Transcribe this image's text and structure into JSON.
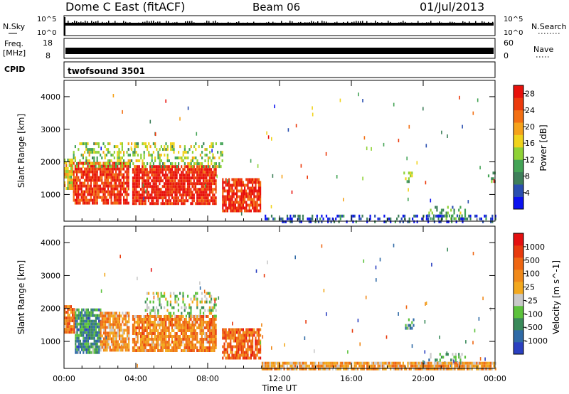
{
  "header": {
    "station": "Dome C East (fitACF)",
    "beam": "Beam 06",
    "date": "01/Jul/2013"
  },
  "top_panels": {
    "nsky_label": "N.Sky",
    "nsky_ticks": [
      "10^5",
      "10^0"
    ],
    "nsearch_label": "N.Search",
    "nsearch_ticks": [
      "10^5",
      "10^0"
    ],
    "freq_label_line1": "Freq.",
    "freq_label_line2": "[MHz]",
    "freq_ticks": [
      "18",
      "8"
    ],
    "nave_label": "Nave",
    "nave_ticks": [
      "60",
      "0"
    ],
    "cpid_label": "CPID",
    "cpid_value": "twofsound 3501"
  },
  "colors": {
    "power_scale": [
      "#0b12f0",
      "#2a4fb0",
      "#3e7f5a",
      "#44a456",
      "#8fd236",
      "#f0d31c",
      "#f5a21a",
      "#f36f12",
      "#ec3a0c",
      "#e8110b"
    ],
    "velocity_scale": [
      "#2a3fc0",
      "#2f6aa6",
      "#3a8a5a",
      "#5cc23c",
      "#c9c9c9",
      "#f2a81e",
      "#f0891a",
      "#ef6612",
      "#e83a0d",
      "#e41010"
    ]
  },
  "chart_data": [
    {
      "type": "heatmap",
      "title": "Power",
      "xlabel": "Time UT",
      "ylabel": "Slant Range [km]",
      "x_ticks": [
        "00:00",
        "04:00",
        "08:00",
        "12:00",
        "16:00",
        "20:00",
        "00:00"
      ],
      "xlim_hours": [
        0,
        24
      ],
      "y_ticks": [
        1000,
        2000,
        3000,
        4000
      ],
      "ylim": [
        180,
        4500
      ],
      "colorbar": {
        "label": "Power [dB]",
        "ticks": [
          4,
          8,
          12,
          16,
          20,
          24,
          28
        ],
        "range": [
          0,
          30
        ]
      },
      "regions": [
        {
          "t": [
            0.0,
            0.5
          ],
          "r": [
            1200,
            2100
          ],
          "level": 0.55
        },
        {
          "t": [
            0.5,
            3.6
          ],
          "r": [
            700,
            2000
          ],
          "level": 0.88
        },
        {
          "t": [
            3.8,
            8.5
          ],
          "r": [
            700,
            1900
          ],
          "level": 0.92
        },
        {
          "t": [
            8.8,
            10.9
          ],
          "r": [
            500,
            1500
          ],
          "level": 0.9
        },
        {
          "t": [
            0.5,
            8.8
          ],
          "r": [
            1900,
            2600
          ],
          "level": 0.45
        },
        {
          "t": [
            18.9,
            19.5
          ],
          "r": [
            1400,
            1700
          ],
          "level": 0.4
        },
        {
          "t": [
            20.2,
            22.3
          ],
          "r": [
            250,
            650
          ],
          "level": 0.35
        },
        {
          "t": [
            11.0,
            24.0
          ],
          "r": [
            180,
            380
          ],
          "level": 0.15
        },
        {
          "t": [
            23.6,
            24.0
          ],
          "r": [
            1400,
            1700
          ],
          "level": 0.3
        }
      ]
    },
    {
      "type": "heatmap",
      "title": "Velocity",
      "xlabel": "Time UT",
      "ylabel": "Slant Range [km]",
      "x_ticks": [
        "00:00",
        "04:00",
        "08:00",
        "12:00",
        "16:00",
        "20:00",
        "00:00"
      ],
      "xlim_hours": [
        0,
        24
      ],
      "y_ticks": [
        1000,
        2000,
        3000,
        4000
      ],
      "ylim": [
        180,
        4500
      ],
      "colorbar": {
        "label": "Velocity [m s^-1]",
        "ticks": [
          -1000,
          -500,
          -100,
          -25,
          25,
          100,
          500,
          1000
        ]
      },
      "regions": [
        {
          "t": [
            0.0,
            0.6
          ],
          "r": [
            1300,
            2100
          ],
          "level": 0.72
        },
        {
          "t": [
            0.6,
            2.0
          ],
          "r": [
            700,
            2000
          ],
          "level": 0.25
        },
        {
          "t": [
            2.0,
            3.6
          ],
          "r": [
            700,
            1900
          ],
          "level": 0.62
        },
        {
          "t": [
            3.8,
            8.5
          ],
          "r": [
            700,
            1800
          ],
          "level": 0.66
        },
        {
          "t": [
            4.5,
            8.5
          ],
          "r": [
            1800,
            2500
          ],
          "level": 0.42
        },
        {
          "t": [
            8.8,
            10.9
          ],
          "r": [
            500,
            1400
          ],
          "level": 0.75
        },
        {
          "t": [
            18.9,
            19.5
          ],
          "r": [
            1400,
            1700
          ],
          "level": 0.3
        },
        {
          "t": [
            20.2,
            22.3
          ],
          "r": [
            250,
            650
          ],
          "level": 0.3
        },
        {
          "t": [
            11.0,
            24.0
          ],
          "r": [
            180,
            380
          ],
          "level": 0.6
        }
      ]
    }
  ]
}
